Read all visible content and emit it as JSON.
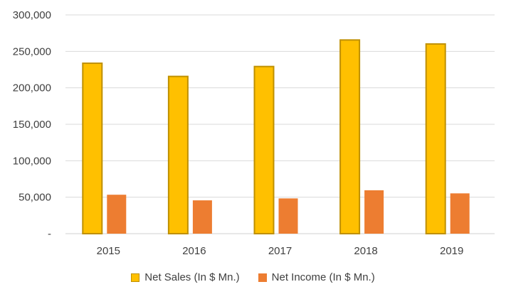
{
  "chart_data": {
    "type": "bar",
    "title": "",
    "xlabel": "",
    "ylabel": "",
    "categories": [
      "2015",
      "2016",
      "2017",
      "2018",
      "2019"
    ],
    "series": [
      {
        "name": "Net Sales (In $ Mn.)",
        "values": [
          233715,
          215639,
          229234,
          265595,
          260174
        ],
        "color": "#FFC000",
        "stroke": "#BF9000"
      },
      {
        "name": "Net Income (In $ Mn.)",
        "values": [
          53394,
          45687,
          48351,
          59531,
          55256
        ],
        "color": "#ED7D31",
        "stroke": "#ED7D31"
      }
    ],
    "ylim": [
      0,
      300000
    ],
    "yticks": [
      0,
      50000,
      100000,
      150000,
      200000,
      250000,
      300000
    ],
    "ytick_labels": [
      "-",
      "50,000",
      "100,000",
      "150,000",
      "200,000",
      "250,000",
      "300,000"
    ],
    "grid": true,
    "legend": "bottom"
  }
}
